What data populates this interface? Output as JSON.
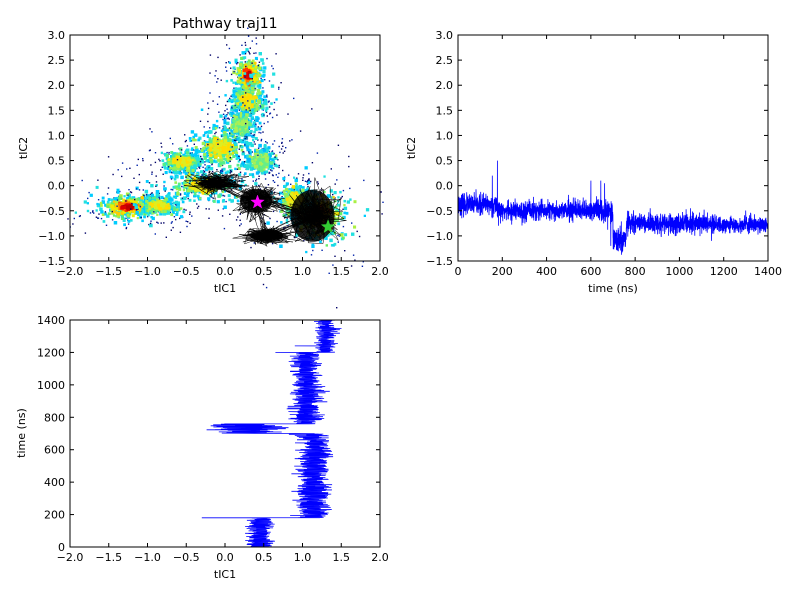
{
  "chart_data": [
    {
      "type": "scatter",
      "id": "landscape",
      "title": "Pathway traj11",
      "xlabel": "tIC1",
      "ylabel": "tIC2",
      "xlim": [
        -2.0,
        2.0
      ],
      "ylim": [
        -1.5,
        3.0
      ],
      "xticks": [
        "−2.0",
        "−1.5",
        "−1.0",
        "−0.5",
        "0.0",
        "0.5",
        "1.0",
        "1.5",
        "2.0"
      ],
      "yticks": [
        "−1.5",
        "−1.0",
        "−0.5",
        "0.0",
        "0.5",
        "1.0",
        "1.5",
        "2.0",
        "2.5",
        "3.0"
      ],
      "density_clusters": [
        {
          "x": -1.25,
          "y": -0.42,
          "sx": 0.22,
          "sy": 0.13,
          "level": "high"
        },
        {
          "x": -0.85,
          "y": -0.4,
          "sx": 0.14,
          "sy": 0.1,
          "level": "mid"
        },
        {
          "x": -0.3,
          "y": 0.0,
          "sx": 0.28,
          "sy": 0.2,
          "level": "mid"
        },
        {
          "x": -0.55,
          "y": 0.48,
          "sx": 0.16,
          "sy": 0.12,
          "level": "mid"
        },
        {
          "x": -0.05,
          "y": 0.75,
          "sx": 0.2,
          "sy": 0.25,
          "level": "mid"
        },
        {
          "x": 0.3,
          "y": 2.2,
          "sx": 0.1,
          "sy": 0.2,
          "level": "high"
        },
        {
          "x": 0.3,
          "y": 1.7,
          "sx": 0.13,
          "sy": 0.2,
          "level": "mid"
        },
        {
          "x": 0.2,
          "y": 1.2,
          "sx": 0.1,
          "sy": 0.2,
          "level": "low"
        },
        {
          "x": 0.45,
          "y": 0.5,
          "sx": 0.12,
          "sy": 0.15,
          "level": "low"
        },
        {
          "x": 1.2,
          "y": -0.6,
          "sx": 0.23,
          "sy": 0.3,
          "level": "high"
        },
        {
          "x": 0.9,
          "y": -0.3,
          "sx": 0.12,
          "sy": 0.2,
          "level": "mid"
        }
      ],
      "trajectory_clusters": [
        {
          "x": 0.4,
          "y": -0.3,
          "sx": 0.12,
          "sy": 0.15
        },
        {
          "x": 0.55,
          "y": -1.0,
          "sx": 0.15,
          "sy": 0.08
        },
        {
          "x": 1.15,
          "y": -0.6,
          "sx": 0.17,
          "sy": 0.25
        },
        {
          "x": -0.1,
          "y": 0.05,
          "sx": 0.15,
          "sy": 0.1
        }
      ],
      "markers": [
        {
          "shape": "star",
          "color": "#ff00ff",
          "x": 0.42,
          "y": -0.33
        },
        {
          "shape": "star",
          "color": "#33cc33",
          "x": 1.33,
          "y": -0.82
        }
      ]
    },
    {
      "type": "line",
      "id": "time_series_tic2",
      "xlabel": "time (ns)",
      "ylabel": "tIC2",
      "xlim": [
        0,
        1400
      ],
      "ylim": [
        -1.5,
        3.0
      ],
      "xticks": [
        "0",
        "200",
        "400",
        "600",
        "800",
        "1000",
        "1200",
        "1400"
      ],
      "yticks": [
        "−1.5",
        "−1.0",
        "−0.5",
        "0.0",
        "0.5",
        "1.0",
        "1.5",
        "2.0",
        "2.5",
        "3.0"
      ],
      "color": "#0000ff",
      "segments": [
        {
          "t0": 0,
          "t1": 180,
          "mean": -0.38,
          "noise": 0.1
        },
        {
          "t0": 180,
          "t1": 640,
          "mean": -0.5,
          "noise": 0.1
        },
        {
          "t0": 640,
          "t1": 700,
          "mean": -0.5,
          "noise": 0.12
        },
        {
          "t0": 700,
          "t1": 760,
          "mean": -1.1,
          "noise": 0.12
        },
        {
          "t0": 760,
          "t1": 1150,
          "mean": -0.75,
          "noise": 0.1
        },
        {
          "t0": 1150,
          "t1": 1400,
          "mean": -0.78,
          "noise": 0.08
        }
      ],
      "spikes": [
        [
          155,
          0.2
        ],
        [
          178,
          0.5
        ],
        [
          600,
          0.1
        ],
        [
          645,
          0.1
        ],
        [
          662,
          0.05
        ],
        [
          690,
          -1.2
        ],
        [
          1050,
          -0.45
        ],
        [
          1145,
          -1.1
        ]
      ]
    },
    {
      "type": "line",
      "id": "time_series_tic1",
      "xlabel": "tIC1",
      "ylabel": "time (ns)",
      "xlim": [
        -2.0,
        2.0
      ],
      "ylim": [
        0,
        1400
      ],
      "xticks": [
        "−2.0",
        "−1.5",
        "−1.0",
        "−0.5",
        "0.0",
        "0.5",
        "1.0",
        "1.5",
        "2.0"
      ],
      "yticks": [
        "0",
        "200",
        "400",
        "600",
        "800",
        "1000",
        "1200",
        "1400"
      ],
      "color": "#0000ff",
      "segments": [
        {
          "t0": 0,
          "t1": 180,
          "mean": 0.45,
          "noise": 0.08
        },
        {
          "t0": 180,
          "t1": 700,
          "mean": 1.15,
          "noise": 0.1
        },
        {
          "t0": 700,
          "t1": 760,
          "mean": 0.25,
          "noise": 0.2
        },
        {
          "t0": 760,
          "t1": 1200,
          "mean": 1.05,
          "noise": 0.09
        },
        {
          "t0": 1200,
          "t1": 1400,
          "mean": 1.3,
          "noise": 0.06
        }
      ],
      "spikes": [
        [
          180,
          -0.3
        ],
        [
          700,
          0.9
        ],
        [
          740,
          -0.15
        ],
        [
          1200,
          0.65
        ],
        [
          1240,
          0.9
        ]
      ]
    }
  ]
}
